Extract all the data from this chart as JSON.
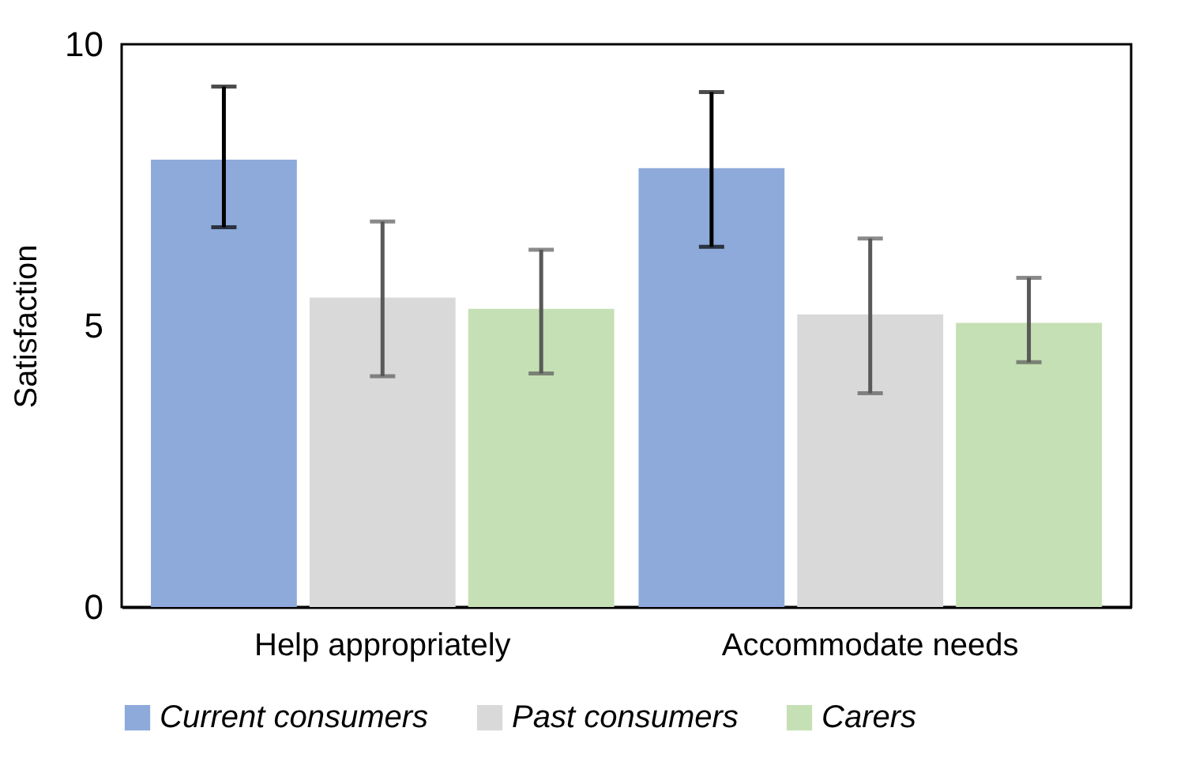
{
  "chart_data": {
    "type": "bar",
    "ylabel": "Satisfaction",
    "categories": [
      "Help appropriately",
      "Accommodate needs"
    ],
    "series": [
      {
        "name": "Current consumers",
        "color": "#8eaadb",
        "values": [
          7.95,
          7.8
        ],
        "errors": [
          [
            6.75,
            9.25
          ],
          [
            6.4,
            9.15
          ]
        ]
      },
      {
        "name": "Past consumers",
        "color": "#d9d9d9",
        "values": [
          5.5,
          5.2
        ],
        "errors": [
          [
            4.1,
            6.85
          ],
          [
            3.8,
            6.55
          ]
        ]
      },
      {
        "name": "Carers",
        "color": "#c5e0b4",
        "values": [
          5.3,
          5.05
        ],
        "errors": [
          [
            4.15,
            6.35
          ],
          [
            4.35,
            5.85
          ]
        ]
      }
    ],
    "ylim": [
      0,
      10
    ],
    "yticks": [
      0,
      5,
      10
    ],
    "grid": false,
    "legend": "bottom"
  }
}
